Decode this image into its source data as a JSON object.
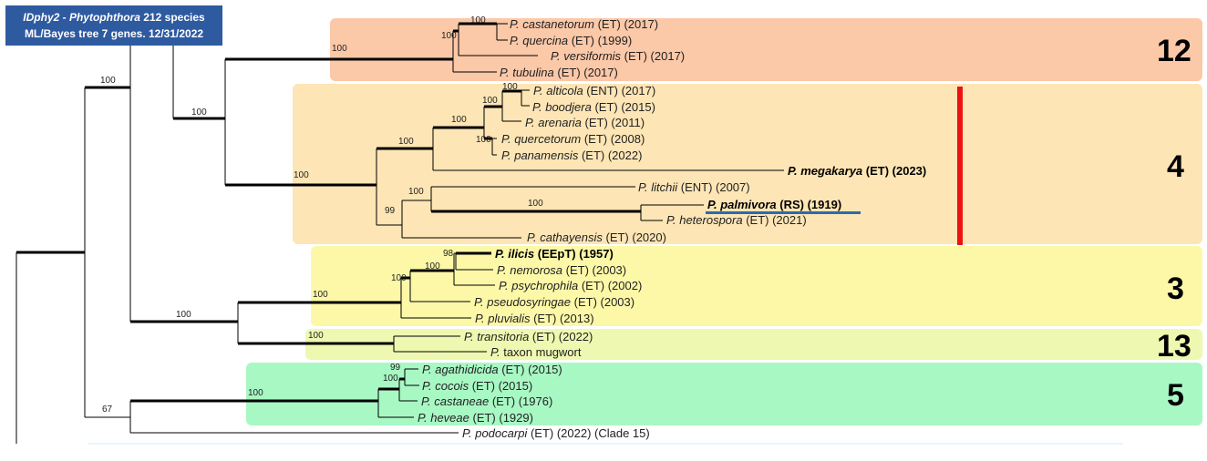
{
  "title": {
    "line1_genus": "IDphy2 - Phytophthora",
    "line1_rest": " 212 species",
    "line2": "ML/Bayes tree 7 genes. 12/31/2022"
  },
  "colors": {
    "clade12": "#fbc8a8",
    "clade4": "#fde5b5",
    "clade3": "#fcf8a8",
    "clade13": "#eef8b0",
    "clade5": "#a8f8c4",
    "highlight_bar": "#ee1111",
    "underline": "#2a6ab0",
    "branch": "#000000"
  },
  "clades": [
    {
      "number": "12"
    },
    {
      "number": "4"
    },
    {
      "number": "3"
    },
    {
      "number": "13"
    },
    {
      "number": "5"
    }
  ],
  "tips": [
    {
      "genus": "P.",
      "species": "castanetorum",
      "meta": " (ET) (2017)",
      "bold": false
    },
    {
      "genus": "P.",
      "species": "quercina",
      "meta": " (ET) (1999)",
      "bold": false
    },
    {
      "genus": "P.",
      "species": "versiformis",
      "meta": " (ET) (2017)",
      "bold": false
    },
    {
      "genus": "P.",
      "species": "tubulina",
      "meta": " (ET) (2017)",
      "bold": false
    },
    {
      "genus": "P.",
      "species": "alticola",
      "meta": " (ENT) (2017)",
      "bold": false
    },
    {
      "genus": "P.",
      "species": "boodjera",
      "meta": " (ET) (2015)",
      "bold": false
    },
    {
      "genus": "P.",
      "species": "arenaria",
      "meta": " (ET) (2011)",
      "bold": false
    },
    {
      "genus": "P.",
      "species": "quercetorum",
      "meta": " (ET) (2008)",
      "bold": false
    },
    {
      "genus": "P.",
      "species": "panamensis",
      "meta": " (ET) (2022)",
      "bold": false
    },
    {
      "genus": "P.",
      "species": "megakarya",
      "meta": " (ET) (2023)",
      "bold": true
    },
    {
      "genus": "P.",
      "species": "litchii",
      "meta": " (ENT) (2007)",
      "bold": false
    },
    {
      "genus": "P.",
      "species": "palmivora",
      "meta": " (RS) (1919)",
      "bold": true
    },
    {
      "genus": "P.",
      "species": "heterospora",
      "meta": " (ET) (2021)",
      "bold": false
    },
    {
      "genus": "P.",
      "species": "cathayensis",
      "meta": " (ET) (2020)",
      "bold": false
    },
    {
      "genus": "P.",
      "species": "ilicis",
      "meta": " (EEpT) (1957)",
      "bold": true
    },
    {
      "genus": "P.",
      "species": "nemorosa",
      "meta": " (ET) (2003)",
      "bold": false
    },
    {
      "genus": "P.",
      "species": "psychrophila",
      "meta": " (ET) (2002)",
      "bold": false
    },
    {
      "genus": "P.",
      "species": "pseudosyringae",
      "meta": " (ET) (2003)",
      "bold": false
    },
    {
      "genus": "P.",
      "species": "pluvialis",
      "meta": " (ET) (2013)",
      "bold": false
    },
    {
      "genus": "P.",
      "species": "transitoria",
      "meta": " (ET) (2022)",
      "bold": false
    },
    {
      "genus": "P.",
      "species": "",
      "meta": "taxon mugwort",
      "bold": false
    },
    {
      "genus": "P.",
      "species": "agathidicida",
      "meta": " (ET) (2015)",
      "bold": false
    },
    {
      "genus": "P.",
      "species": "cocois",
      "meta": " (ET) (2015)",
      "bold": false
    },
    {
      "genus": "P.",
      "species": "castaneae",
      "meta": " (ET) (1976)",
      "bold": false
    },
    {
      "genus": "P.",
      "species": "heveae",
      "meta": " (ET) (1929)",
      "bold": false
    },
    {
      "genus": "P.",
      "species": "podocarpi",
      "meta": " (ET) (2022) (Clade 15)",
      "bold": false
    }
  ],
  "supports": [
    "100",
    "100",
    "100",
    "100",
    "100",
    "100",
    "100",
    "100",
    "100",
    "100",
    "100",
    "99",
    "100",
    "100",
    "98",
    "100",
    "100",
    "100",
    "100",
    "100",
    "99",
    "100",
    "100",
    "67",
    "100",
    "100"
  ]
}
